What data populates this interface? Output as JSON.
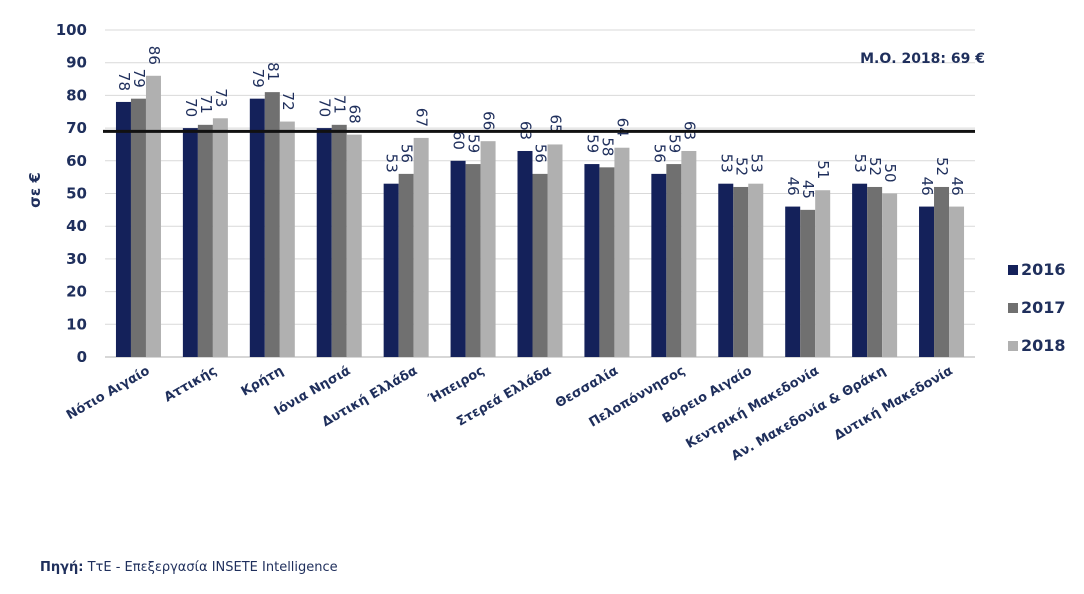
{
  "chart_data": {
    "type": "bar",
    "ylabel": "σε €",
    "ylim": [
      0,
      100
    ],
    "yticks": [
      0,
      10,
      20,
      30,
      40,
      50,
      60,
      70,
      80,
      90,
      100
    ],
    "grid": true,
    "legend_position": "right",
    "categories": [
      "Νότιο Αιγαίο",
      "Αττικής",
      "Κρήτη",
      "Ιόνια Νησιά",
      "Δυτική Ελλάδα",
      "Ήπειρος",
      "Στερεά Ελλάδα",
      "Θεσσαλία",
      "Πελοπόννησος",
      "Βόρειο Αιγαίο",
      "Κεντρική Μακεδονία",
      "Αν. Μακεδονία & Θράκη",
      "Δυτική Μακεδονία"
    ],
    "series": [
      {
        "name": "2016",
        "color": "#14215a",
        "values": [
          78,
          70,
          79,
          70,
          53,
          60,
          63,
          59,
          56,
          53,
          46,
          53,
          46
        ]
      },
      {
        "name": "2017",
        "color": "#707070",
        "values": [
          79,
          71,
          81,
          71,
          56,
          59,
          56,
          58,
          59,
          52,
          45,
          52,
          52
        ]
      },
      {
        "name": "2018",
        "color": "#b0b0b0",
        "values": [
          86,
          73,
          72,
          68,
          67,
          66,
          65,
          64,
          63,
          53,
          51,
          50,
          46
        ]
      }
    ],
    "reference_line": {
      "value": 69,
      "label": "Μ.Ο. 2018: 69 €"
    }
  },
  "source": {
    "label": "Πηγή:",
    "text": " ΤτΕ - Επεξεργασία INSETE Intelligence"
  }
}
